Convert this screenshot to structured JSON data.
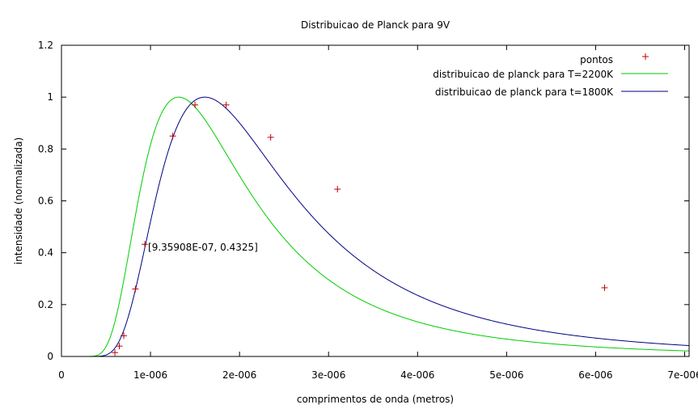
{
  "chart_data": {
    "type": "line",
    "title": "Distribuicao de Planck para 9V",
    "xlabel": "comprimentos de onda (metros)",
    "ylabel": "intensidade (normalizada)",
    "xlim": [
      0,
      7.05e-06
    ],
    "ylim": [
      0,
      1.2
    ],
    "x_ticks": [
      {
        "value": 0,
        "label": "0"
      },
      {
        "value": 1e-06,
        "label": "1e-006"
      },
      {
        "value": 2e-06,
        "label": "2e-006"
      },
      {
        "value": 3e-06,
        "label": "3e-006"
      },
      {
        "value": 4e-06,
        "label": "4e-006"
      },
      {
        "value": 5e-06,
        "label": "5e-006"
      },
      {
        "value": 6e-06,
        "label": "6e-006"
      },
      {
        "value": 7e-06,
        "label": "7e-006"
      }
    ],
    "y_ticks": [
      {
        "value": 0,
        "label": "0"
      },
      {
        "value": 0.2,
        "label": "0.2"
      },
      {
        "value": 0.4,
        "label": "0.4"
      },
      {
        "value": 0.6,
        "label": "0.6"
      },
      {
        "value": 0.8,
        "label": "0.8"
      },
      {
        "value": 1.0,
        "label": "1"
      },
      {
        "value": 1.2,
        "label": "1.2"
      }
    ],
    "grid": false,
    "legend_position": "top-right",
    "series": [
      {
        "name": "pontos",
        "kind": "scatter",
        "marker": "+",
        "color": "#c00000",
        "points": [
          [
            6e-07,
            0.015
          ],
          [
            6.5e-07,
            0.04
          ],
          [
            7e-07,
            0.08
          ],
          [
            8.3e-07,
            0.26
          ],
          [
            9.35908e-07,
            0.4325
          ],
          [
            1.25e-06,
            0.85
          ],
          [
            1.5e-06,
            0.97
          ],
          [
            1.85e-06,
            0.97
          ],
          [
            2.35e-06,
            0.845
          ],
          [
            3.1e-06,
            0.645
          ],
          [
            6.1e-06,
            0.265
          ]
        ]
      },
      {
        "name": "distribuicao de planck para T=2200K",
        "kind": "line",
        "color": "#00cc00",
        "temperature_K": 2200
      },
      {
        "name": "distribuicao de planck para t=1800K",
        "kind": "line",
        "color": "#000080",
        "temperature_K": 1800
      }
    ],
    "annotation": {
      "text": "[9.35908E-07, 0.4325]",
      "x": 9.35908e-07,
      "y": 0.4325
    }
  }
}
